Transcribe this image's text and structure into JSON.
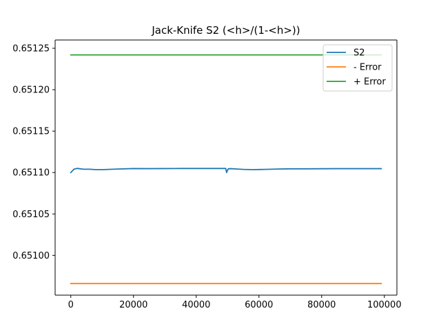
{
  "chart_data": {
    "type": "line",
    "title": "Jack-Knife S2 (<h>/(1-<h>))",
    "xlabel": "",
    "ylabel": "",
    "xlim": [
      -5000,
      104000
    ],
    "ylim": [
      0.650952,
      0.65126
    ],
    "xticks": [
      0,
      20000,
      40000,
      60000,
      80000,
      100000
    ],
    "xtick_labels": [
      "0",
      "20000",
      "40000",
      "60000",
      "80000",
      "100000"
    ],
    "yticks": [
      0.651,
      0.65105,
      0.6511,
      0.65115,
      0.6512,
      0.65125
    ],
    "ytick_labels": [
      "0.65100",
      "0.65105",
      "0.65110",
      "0.65115",
      "0.65120",
      "0.65125"
    ],
    "grid": false,
    "legend_position": "top-right",
    "series": [
      {
        "name": "S2",
        "color": "#1f77b4",
        "x": [
          0,
          500,
          1000,
          2000,
          4000,
          6000,
          8000,
          10000,
          15000,
          20000,
          25000,
          30000,
          35000,
          40000,
          45000,
          49000,
          49400,
          49700,
          50200,
          51000,
          53000,
          55000,
          58000,
          62000,
          66000,
          70000,
          75000,
          80000,
          85000,
          90000,
          95000,
          99000
        ],
        "y": [
          0.6511,
          0.651102,
          0.651104,
          0.651105,
          0.651104,
          0.651104,
          0.6511035,
          0.6511035,
          0.6511042,
          0.6511048,
          0.6511047,
          0.6511048,
          0.6511049,
          0.6511049,
          0.6511049,
          0.6511049,
          0.6511049,
          0.6511,
          0.6511045,
          0.6511047,
          0.6511042,
          0.6511038,
          0.6511035,
          0.6511038,
          0.6511042,
          0.6511045,
          0.6511045,
          0.6511046,
          0.6511047,
          0.6511047,
          0.6511047,
          0.6511047
        ]
      },
      {
        "name": "- Error",
        "color": "#ff7f0e",
        "x": [
          0,
          99000
        ],
        "y": [
          0.650966,
          0.650966
        ]
      },
      {
        "name": "+ Error",
        "color": "#2ca02c",
        "x": [
          0,
          99000
        ],
        "y": [
          0.651242,
          0.651242
        ]
      }
    ]
  }
}
